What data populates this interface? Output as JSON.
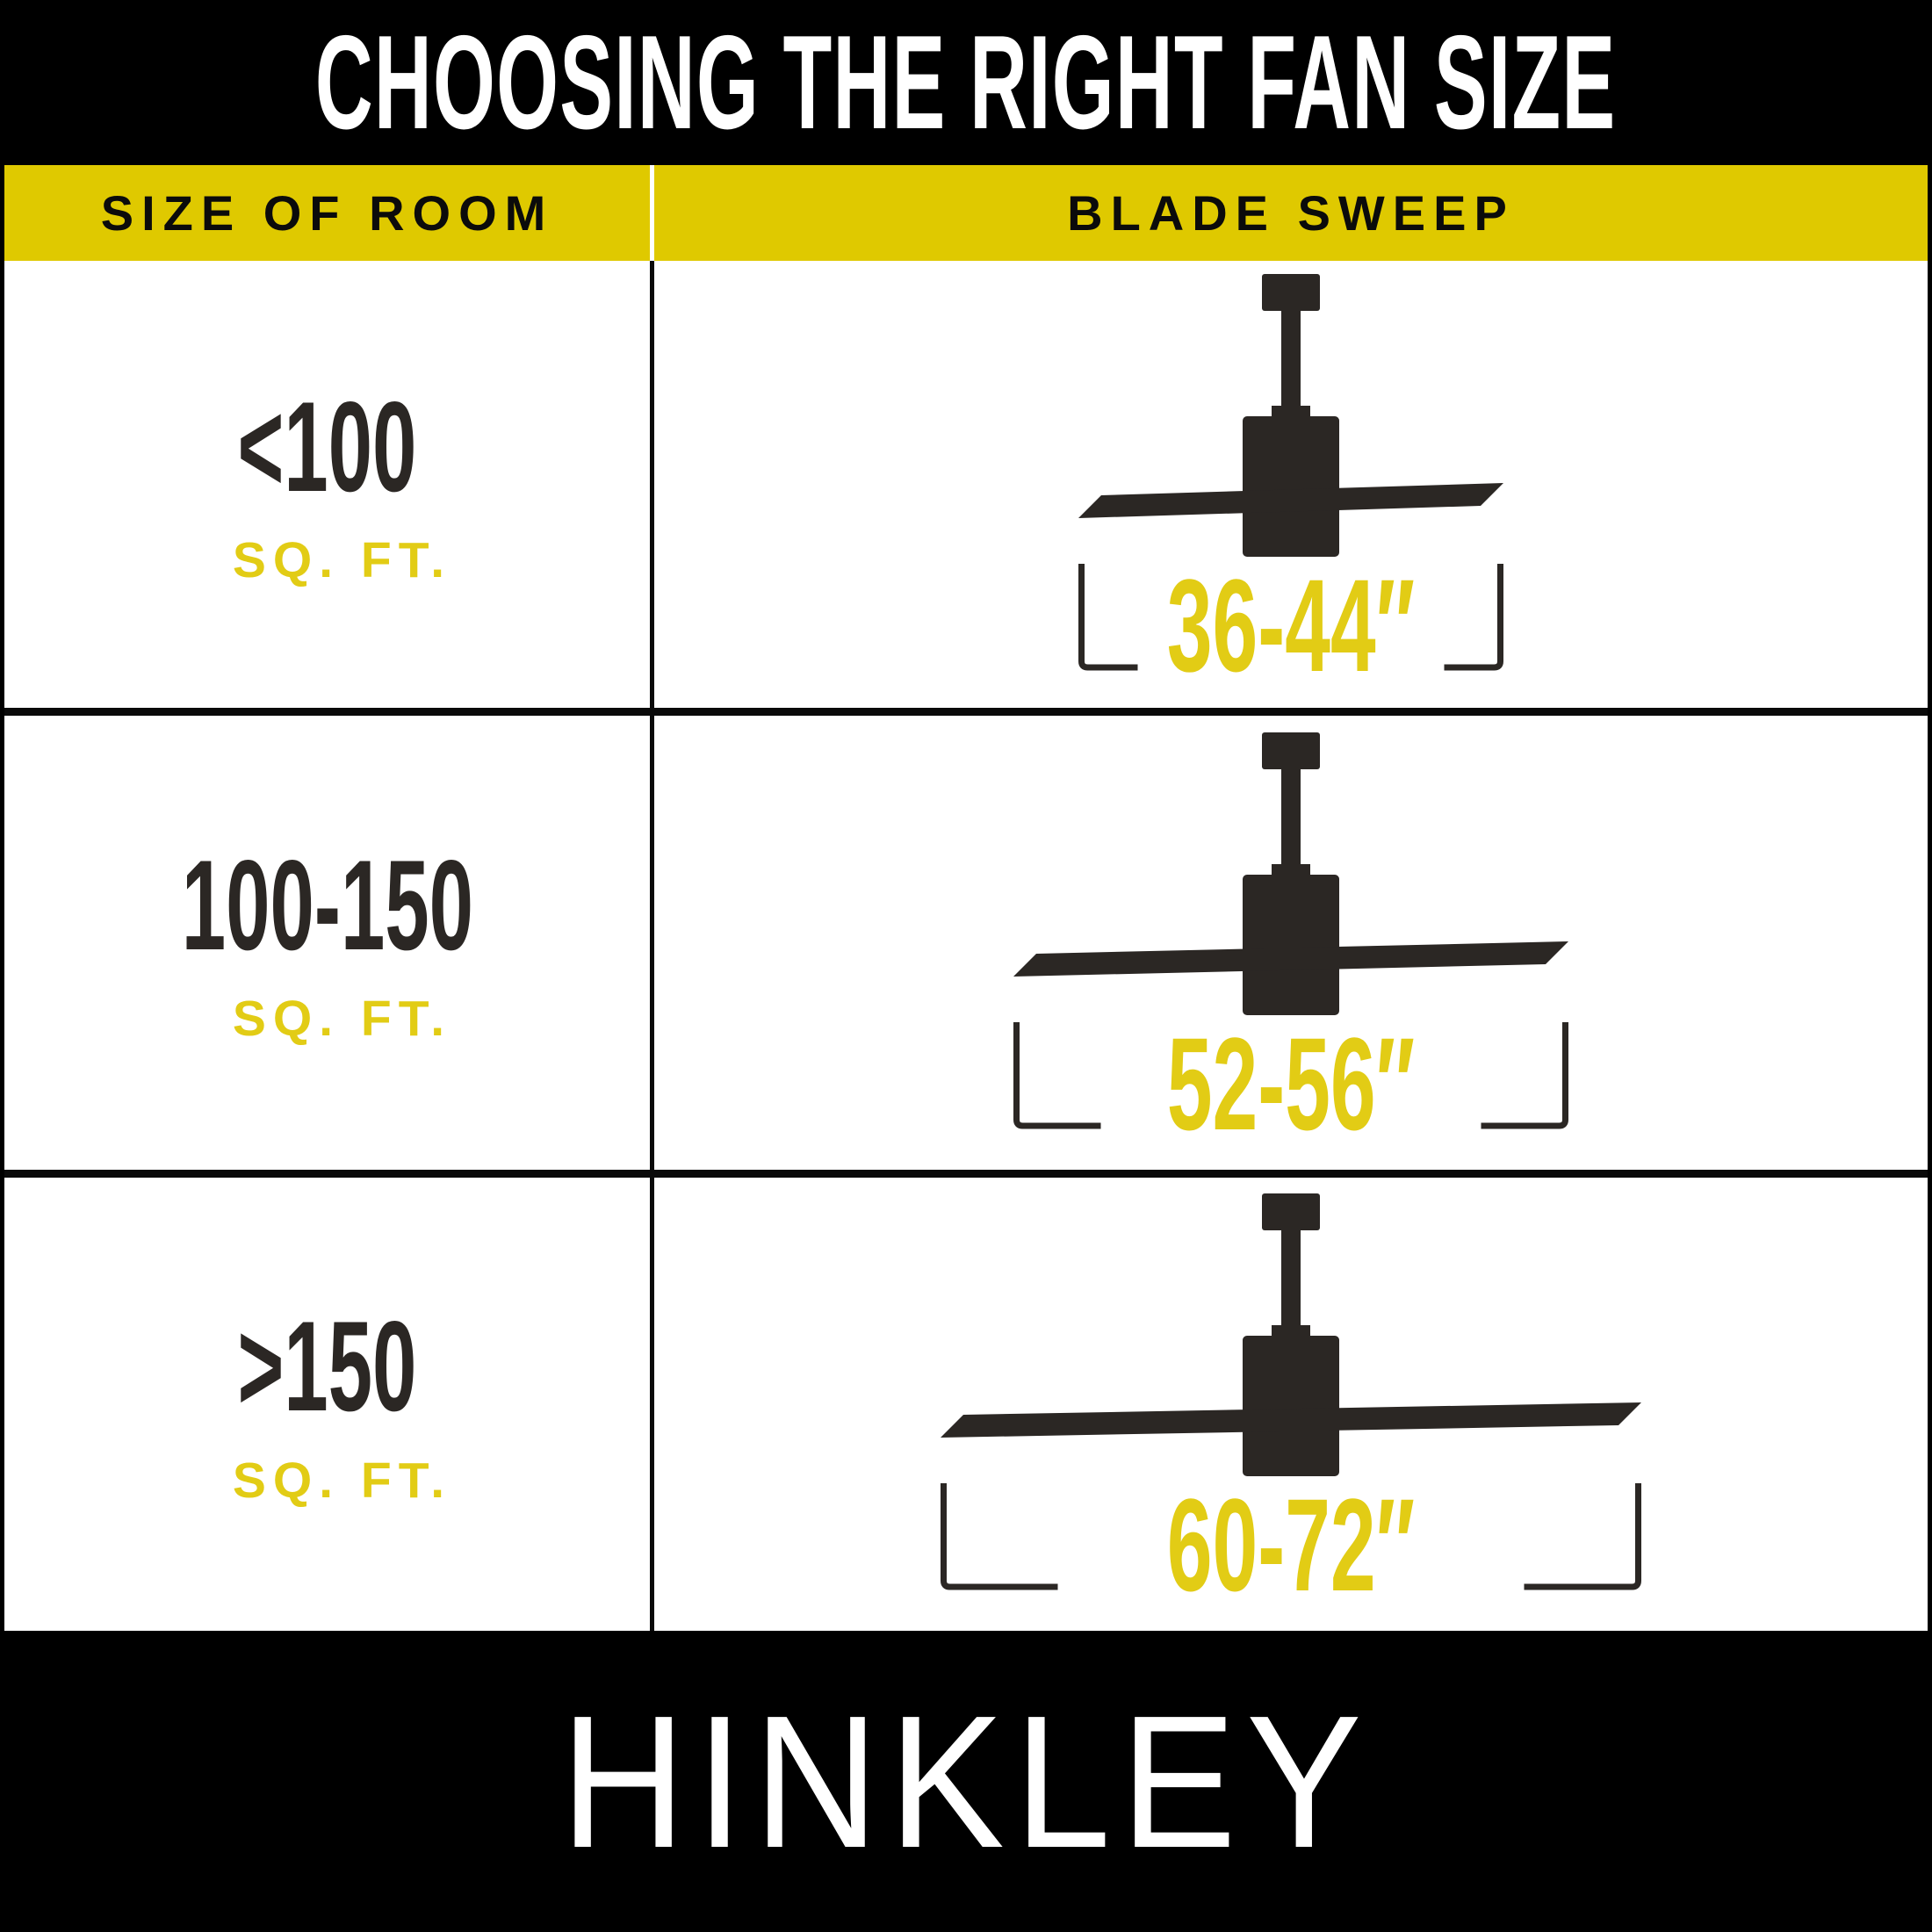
{
  "title": "CHOOSING THE RIGHT FAN SIZE",
  "colors": {
    "yellow_band": "#DFC900",
    "yellow_text": "#E2CC15",
    "ink": "#2B2724",
    "background": "#FFFFFF",
    "bar_black": "#000000"
  },
  "table": {
    "headers": [
      {
        "label": "SIZE OF ROOM"
      },
      {
        "label": "BLADE SWEEP"
      }
    ],
    "rows": [
      {
        "room_size": "<100",
        "room_unit": "SQ. FT.",
        "blade_sweep": "36-44″",
        "blade_w": 484,
        "stub": 64
      },
      {
        "room_size": "100-150",
        "room_unit": "SQ. FT.",
        "blade_sweep": "52-56″",
        "blade_w": 632,
        "stub": 96
      },
      {
        "room_size": ">150",
        "room_unit": "SQ. FT.",
        "blade_sweep": "60-72″",
        "blade_w": 798,
        "stub": 130
      }
    ]
  },
  "footer": {
    "brand": "HINKLEY"
  }
}
